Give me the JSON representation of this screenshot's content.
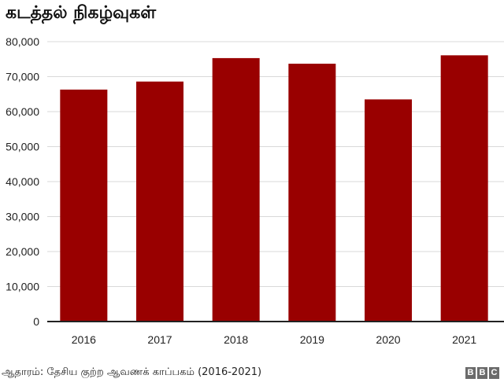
{
  "title": "கடத்தல் நிகழ்வுகள்",
  "source": "ஆதாரம்: தேசிய குற்ற ஆவணக் காப்பகம் (2016-2021)",
  "logo": [
    "B",
    "B",
    "C"
  ],
  "colors": {
    "bar": "#990000",
    "grid": "#d9d9d9",
    "axis": "#222222"
  },
  "chart_data": {
    "type": "bar",
    "title": "கடத்தல் நிகழ்வுகள்",
    "xlabel": "",
    "ylabel": "",
    "categories": [
      "2016",
      "2017",
      "2018",
      "2019",
      "2020",
      "2021"
    ],
    "values": [
      66300,
      68600,
      75300,
      73700,
      63500,
      76100
    ],
    "ylim": [
      0,
      80000
    ],
    "yticks": [
      0,
      10000,
      20000,
      30000,
      40000,
      50000,
      60000,
      70000,
      80000
    ],
    "ytick_labels": [
      "0",
      "10,000",
      "20,000",
      "30,000",
      "40,000",
      "50,000",
      "60,000",
      "70,000",
      "80,000"
    ],
    "grid": true,
    "legend": "none"
  }
}
